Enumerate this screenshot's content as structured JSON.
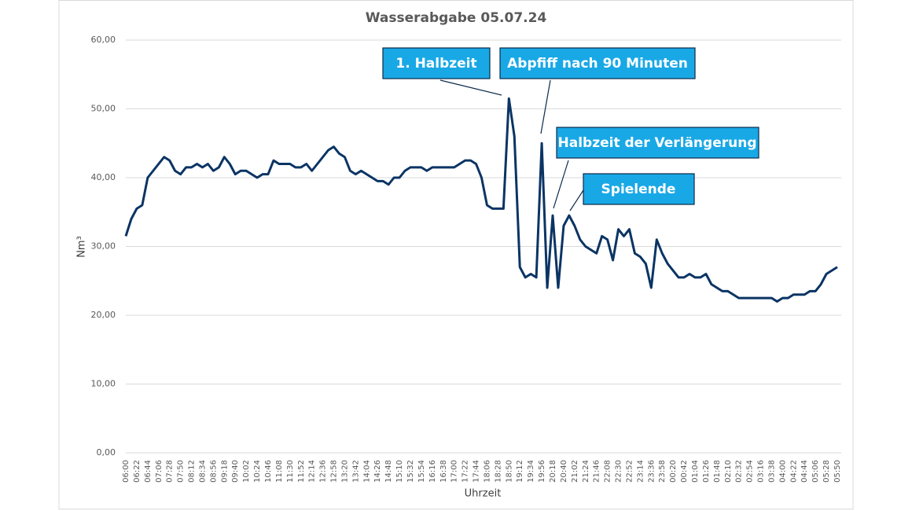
{
  "chart_data": {
    "type": "line",
    "title": "Wasserabgabe 05.07.24",
    "x_label": "Uhrzeit",
    "y_label": "Nm³",
    "categories": [
      "06:00",
      null,
      "06:22",
      null,
      "06:44",
      null,
      "07:06",
      null,
      "07:28",
      null,
      "07:50",
      null,
      "08:12",
      null,
      "08:34",
      null,
      "08:56",
      null,
      "09:18",
      null,
      "09:40",
      null,
      "10:02",
      null,
      "10:24",
      null,
      "10:46",
      null,
      "11:08",
      null,
      "11:30",
      null,
      "11:52",
      null,
      "12:14",
      null,
      "12:36",
      null,
      "12:58",
      null,
      "13:20",
      null,
      "13:42",
      null,
      "14:04",
      null,
      "14:26",
      null,
      "14:48",
      null,
      "15:10",
      null,
      "15:32",
      null,
      "15:54",
      null,
      "16:16",
      null,
      "16:38",
      null,
      "17:00",
      null,
      "17:22",
      null,
      "17:44",
      null,
      "18:06",
      null,
      "18:28",
      null,
      "18:50",
      null,
      "19:12",
      null,
      "19:34",
      null,
      "19:56",
      null,
      "20:18",
      null,
      "20:40",
      null,
      "21:02",
      null,
      "21:24",
      null,
      "21:46",
      null,
      "22:08",
      null,
      "22:30",
      null,
      "22:52",
      null,
      "23:14",
      null,
      "23:36",
      null,
      "23:58",
      null,
      "00:20",
      null,
      "00:42",
      null,
      "01:04",
      null,
      "01:26",
      null,
      "01:48",
      null,
      "02:10",
      null,
      "02:32",
      null,
      "02:54",
      null,
      "03:16",
      null,
      "03:38",
      null,
      "04:00",
      null,
      "04:22",
      null,
      "04:44",
      null,
      "05:06",
      null,
      "05:28",
      null,
      "05:50"
    ],
    "series": [
      {
        "color": "#0b3464",
        "values": [
          31.5,
          34,
          35.5,
          36,
          40,
          41,
          42,
          43,
          42.5,
          41,
          40.5,
          41.5,
          41.5,
          42,
          41.5,
          42,
          41,
          41.5,
          43,
          42,
          40.5,
          41,
          41,
          40.5,
          40,
          40.5,
          40.5,
          42.5,
          42,
          42,
          42,
          41.5,
          41.5,
          42,
          41,
          42,
          43,
          44,
          44.5,
          43.5,
          43,
          41,
          40.5,
          41,
          40.5,
          40,
          39.5,
          39.5,
          39,
          40,
          40,
          41,
          41.5,
          41.5,
          41.5,
          41,
          41.5,
          41.5,
          41.5,
          41.5,
          41.5,
          42,
          42.5,
          42.5,
          42,
          40,
          36,
          35.5,
          35.5,
          35.5,
          51.5,
          46,
          27,
          25.5,
          26,
          25.5,
          45,
          24,
          34.5,
          24,
          33,
          34.5,
          33,
          31,
          30,
          29.5,
          29,
          31.5,
          31,
          28,
          32.5,
          31.5,
          32.5,
          29,
          28.5,
          27.5,
          24,
          31,
          29,
          27.5,
          26.5,
          25.5,
          25.5,
          26,
          25.5,
          25.5,
          26,
          24.5,
          24,
          23.5,
          23.5,
          23,
          22.5,
          22.5,
          22.5,
          22.5,
          22.5,
          22.5,
          22.5,
          22,
          22.5,
          22.5,
          23,
          23,
          23,
          23.5,
          23.5,
          24.5,
          26,
          26.5,
          27
        ]
      }
    ],
    "ylim": [
      0,
      60
    ],
    "yticks": [
      {
        "value": 0,
        "label": "0,00"
      },
      {
        "value": 10,
        "label": "10,00"
      },
      {
        "value": 20,
        "label": "20,00"
      },
      {
        "value": 30,
        "label": "30,00"
      },
      {
        "value": 40,
        "label": "40,00"
      },
      {
        "value": 50,
        "label": "50,00"
      },
      {
        "value": 60,
        "label": "60,00"
      }
    ],
    "grid": true,
    "annotations": [
      "1. Halbzeit",
      "Abpfiff nach 90 Minuten",
      "Halbzeit der Verlängerung",
      "Spielende"
    ]
  }
}
